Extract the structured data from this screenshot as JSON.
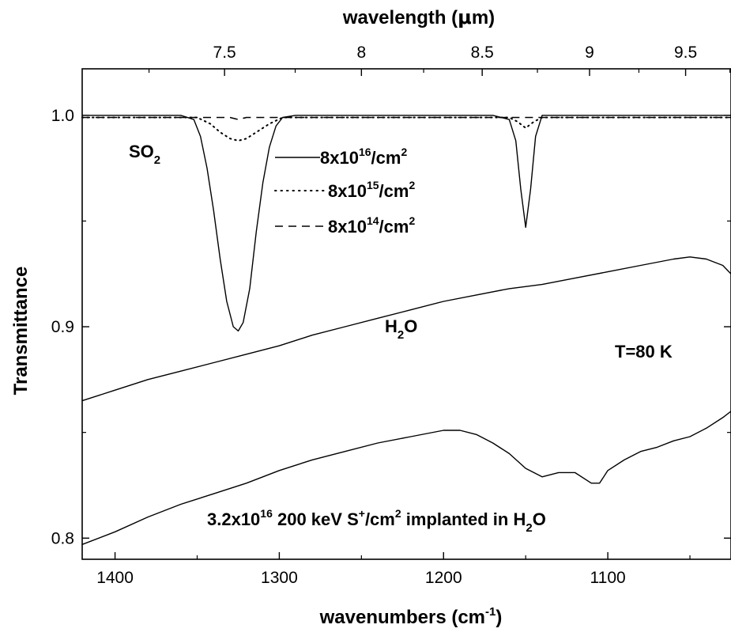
{
  "chart_data": {
    "type": "line",
    "xlabel": {
      "main": "wavenumbers (cm",
      "sup": "-1",
      "tail": ")"
    },
    "x2label": {
      "main": "wavelength (",
      "mu": "μ",
      "tail": "m)"
    },
    "ylabel": "Transmittance",
    "xlim": [
      1420,
      1025
    ],
    "ylim": [
      0.79,
      1.022
    ],
    "x_direction": "reversed",
    "grid": false,
    "x_ticks": [
      "1400",
      "1300",
      "1200",
      "1100"
    ],
    "y_ticks": [
      "0.8",
      "0.9",
      "1.0"
    ],
    "x2_ticks": [
      "7.5",
      "8",
      "8.5",
      "9",
      "9.5"
    ],
    "x2_tick_values_um": [
      7.5,
      8,
      8.5,
      9,
      9.5
    ],
    "legend": {
      "placement": "top-center",
      "items": [
        {
          "style": "solid",
          "base": "8x10",
          "exp": "16",
          "unit": "/cm",
          "unit_exp": "2"
        },
        {
          "style": "dotted",
          "base": "8x10",
          "exp": "15",
          "unit": "/cm",
          "unit_exp": "2"
        },
        {
          "style": "dashed",
          "base": "8x10",
          "exp": "14",
          "unit": "/cm",
          "unit_exp": "2"
        }
      ]
    },
    "annotations": {
      "so2": {
        "main": "SO",
        "sub": "2"
      },
      "h2o": {
        "main": "H",
        "sub": "2",
        "tail": "O"
      },
      "temp": "T=80 K",
      "implant": {
        "a": "3.2x10",
        "a_sup": "16",
        "b": " 200 keV S",
        "b_sup": "+",
        "c": "/cm",
        "c_sup": "2",
        "d": " implanted in H",
        "d_sub": "2",
        "e": "O"
      }
    },
    "series": [
      {
        "style": "solid",
        "stroke": "#000000",
        "x": [
          1420,
          1400,
          1380,
          1360,
          1352,
          1348,
          1344,
          1340,
          1336,
          1332,
          1328,
          1325,
          1322,
          1318,
          1314,
          1310,
          1306,
          1302,
          1298,
          1290,
          1240,
          1200,
          1170,
          1160,
          1156,
          1153,
          1150,
          1147,
          1144,
          1140,
          1100,
          1060,
          1025
        ],
        "y": [
          1.0,
          1.0,
          1.0,
          1.0,
          0.998,
          0.99,
          0.975,
          0.955,
          0.932,
          0.912,
          0.9,
          0.898,
          0.902,
          0.918,
          0.945,
          0.968,
          0.985,
          0.995,
          0.999,
          1.0,
          1.0,
          1.0,
          1.0,
          0.998,
          0.988,
          0.965,
          0.947,
          0.965,
          0.99,
          1.0,
          1.0,
          1.0,
          1.0
        ]
      },
      {
        "style": "dotted",
        "stroke": "#000000",
        "x": [
          1420,
          1350,
          1342,
          1336,
          1330,
          1325,
          1320,
          1314,
          1306,
          1298,
          1160,
          1155,
          1150,
          1145,
          1140,
          1025
        ],
        "y": [
          0.999,
          0.999,
          0.996,
          0.992,
          0.989,
          0.988,
          0.989,
          0.992,
          0.996,
          0.999,
          0.999,
          0.997,
          0.994,
          0.997,
          0.999,
          0.999
        ]
      },
      {
        "style": "dashed",
        "stroke": "#000000",
        "x": [
          1420,
          1330,
          1325,
          1320,
          1025
        ],
        "y": [
          0.999,
          0.999,
          0.998,
          0.999,
          0.999
        ]
      },
      {
        "name": "H2O",
        "style": "solid",
        "stroke": "#000000",
        "x": [
          1420,
          1400,
          1380,
          1360,
          1340,
          1320,
          1300,
          1280,
          1260,
          1240,
          1220,
          1200,
          1180,
          1160,
          1140,
          1120,
          1100,
          1080,
          1060,
          1050,
          1040,
          1030,
          1025
        ],
        "y": [
          0.865,
          0.87,
          0.875,
          0.879,
          0.883,
          0.887,
          0.891,
          0.896,
          0.9,
          0.904,
          0.908,
          0.912,
          0.915,
          0.918,
          0.92,
          0.923,
          0.926,
          0.929,
          0.932,
          0.933,
          0.932,
          0.929,
          0.925
        ]
      },
      {
        "name": "implanted",
        "style": "solid",
        "stroke": "#000000",
        "x": [
          1420,
          1400,
          1380,
          1360,
          1340,
          1320,
          1300,
          1280,
          1260,
          1240,
          1220,
          1200,
          1190,
          1180,
          1170,
          1160,
          1150,
          1140,
          1130,
          1120,
          1110,
          1105,
          1100,
          1090,
          1080,
          1070,
          1060,
          1050,
          1040,
          1030,
          1025
        ],
        "y": [
          0.797,
          0.803,
          0.81,
          0.816,
          0.821,
          0.826,
          0.832,
          0.837,
          0.841,
          0.845,
          0.848,
          0.851,
          0.851,
          0.849,
          0.845,
          0.84,
          0.833,
          0.829,
          0.831,
          0.831,
          0.826,
          0.826,
          0.832,
          0.837,
          0.841,
          0.843,
          0.846,
          0.848,
          0.852,
          0.857,
          0.86
        ]
      }
    ]
  }
}
